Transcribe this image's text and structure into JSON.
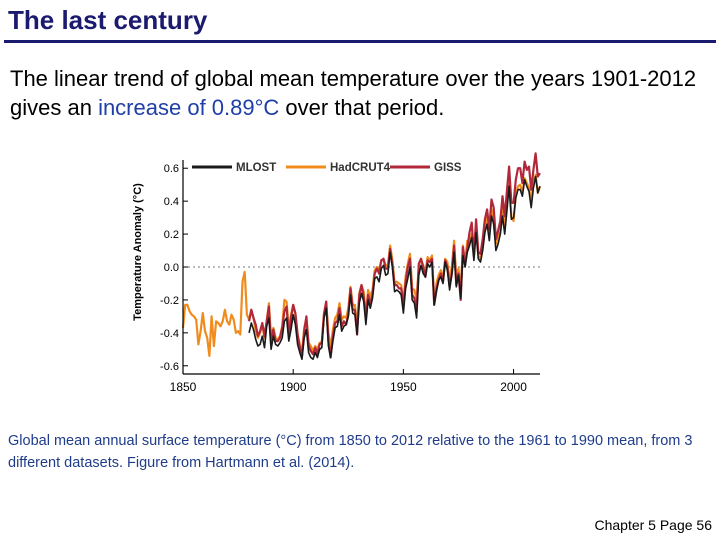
{
  "slide": {
    "title": "The last century",
    "text_before": "The linear trend of  global mean temperature over the years 1901-2012 gives an ",
    "text_highlight": "increase of 0.89°C",
    "text_after": " over that period.",
    "caption": "Global mean annual surface temperature (°C) from 1850 to 2012 relative to the 1961 to 1990 mean, from 3 different datasets. Figure from Hartmann et al. (2014).",
    "footer": "Chapter 5 Page 56"
  },
  "colors": {
    "title": "#1a1a6e",
    "highlight": "#1f3fa8",
    "caption": "#1f3c8a",
    "mlost": "#1a1a1a",
    "hadcrut4": "#f08c1e",
    "giss": "#b0283a"
  },
  "chart_data": {
    "type": "line",
    "title": "",
    "xlabel": "",
    "ylabel": "Temperature Anomaly (°C)",
    "xlim": [
      1850,
      2012
    ],
    "ylim": [
      -0.65,
      0.65
    ],
    "x_ticks": [
      "1850",
      "1900",
      "1950",
      "2000"
    ],
    "y_ticks": [
      "-0.6",
      "-0.4",
      "-0.2",
      "0.0",
      "0.2",
      "0.4",
      "0.6"
    ],
    "zero_line": "dashed",
    "legend_position": "top",
    "series": [
      {
        "name": "MLOST",
        "color": "#1a1a1a",
        "x": [
          1880,
          1881,
          1882,
          1883,
          1884,
          1885,
          1886,
          1887,
          1888,
          1889,
          1890,
          1891,
          1892,
          1893,
          1894,
          1895,
          1896,
          1897,
          1898,
          1899,
          1900,
          1901,
          1902,
          1903,
          1904,
          1905,
          1906,
          1907,
          1908,
          1909,
          1910,
          1911,
          1912,
          1913,
          1914,
          1915,
          1916,
          1917,
          1918,
          1919,
          1920,
          1921,
          1922,
          1923,
          1924,
          1925,
          1926,
          1927,
          1928,
          1929,
          1930,
          1931,
          1932,
          1933,
          1934,
          1935,
          1936,
          1937,
          1938,
          1939,
          1940,
          1941,
          1942,
          1943,
          1944,
          1945,
          1946,
          1947,
          1948,
          1949,
          1950,
          1951,
          1952,
          1953,
          1954,
          1955,
          1956,
          1957,
          1958,
          1959,
          1960,
          1961,
          1962,
          1963,
          1964,
          1965,
          1966,
          1967,
          1968,
          1969,
          1970,
          1971,
          1972,
          1973,
          1974,
          1975,
          1976,
          1977,
          1978,
          1979,
          1980,
          1981,
          1982,
          1983,
          1984,
          1985,
          1986,
          1987,
          1988,
          1989,
          1990,
          1991,
          1992,
          1993,
          1994,
          1995,
          1996,
          1997,
          1998,
          1999,
          2000,
          2001,
          2002,
          2003,
          2004,
          2005,
          2006,
          2007,
          2008,
          2009,
          2010,
          2011,
          2012
        ],
        "values": [
          -0.4,
          -0.34,
          -0.38,
          -0.44,
          -0.48,
          -0.47,
          -0.42,
          -0.49,
          -0.36,
          -0.31,
          -0.5,
          -0.42,
          -0.47,
          -0.48,
          -0.46,
          -0.43,
          -0.33,
          -0.31,
          -0.45,
          -0.38,
          -0.29,
          -0.35,
          -0.47,
          -0.52,
          -0.56,
          -0.43,
          -0.38,
          -0.52,
          -0.55,
          -0.56,
          -0.52,
          -0.55,
          -0.5,
          -0.49,
          -0.31,
          -0.25,
          -0.48,
          -0.55,
          -0.45,
          -0.37,
          -0.36,
          -0.29,
          -0.39,
          -0.36,
          -0.35,
          -0.3,
          -0.17,
          -0.28,
          -0.29,
          -0.41,
          -0.22,
          -0.16,
          -0.21,
          -0.35,
          -0.2,
          -0.25,
          -0.19,
          -0.07,
          -0.06,
          -0.09,
          -0.01,
          0.01,
          -0.05,
          -0.04,
          0.09,
          0.0,
          -0.15,
          -0.14,
          -0.15,
          -0.17,
          -0.28,
          -0.13,
          -0.07,
          0.0,
          -0.2,
          -0.22,
          -0.31,
          -0.05,
          0.01,
          -0.04,
          -0.06,
          0.02,
          0.0,
          0.03,
          -0.23,
          -0.15,
          -0.08,
          -0.06,
          -0.1,
          0.03,
          -0.02,
          -0.14,
          -0.04,
          0.09,
          -0.12,
          -0.05,
          -0.19,
          0.07,
          0.0,
          0.09,
          0.13,
          0.18,
          0.04,
          0.21,
          0.05,
          0.03,
          0.1,
          0.21,
          0.26,
          0.16,
          0.31,
          0.26,
          0.1,
          0.14,
          0.2,
          0.31,
          0.2,
          0.34,
          0.49,
          0.29,
          0.3,
          0.42,
          0.47,
          0.47,
          0.43,
          0.53,
          0.49,
          0.46,
          0.36,
          0.48,
          0.55,
          0.45,
          0.49
        ]
      },
      {
        "name": "HadCRUT4",
        "color": "#f08c1e",
        "x": [
          1850,
          1851,
          1852,
          1853,
          1854,
          1855,
          1856,
          1857,
          1858,
          1859,
          1860,
          1861,
          1862,
          1863,
          1864,
          1865,
          1866,
          1867,
          1868,
          1869,
          1870,
          1871,
          1872,
          1873,
          1874,
          1875,
          1876,
          1877,
          1878,
          1879,
          1880,
          1881,
          1882,
          1883,
          1884,
          1885,
          1886,
          1887,
          1888,
          1889,
          1890,
          1891,
          1892,
          1893,
          1894,
          1895,
          1896,
          1897,
          1898,
          1899,
          1900,
          1901,
          1902,
          1903,
          1904,
          1905,
          1906,
          1907,
          1908,
          1909,
          1910,
          1911,
          1912,
          1913,
          1914,
          1915,
          1916,
          1917,
          1918,
          1919,
          1920,
          1921,
          1922,
          1923,
          1924,
          1925,
          1926,
          1927,
          1928,
          1929,
          1930,
          1931,
          1932,
          1933,
          1934,
          1935,
          1936,
          1937,
          1938,
          1939,
          1940,
          1941,
          1942,
          1943,
          1944,
          1945,
          1946,
          1947,
          1948,
          1949,
          1950,
          1951,
          1952,
          1953,
          1954,
          1955,
          1956,
          1957,
          1958,
          1959,
          1960,
          1961,
          1962,
          1963,
          1964,
          1965,
          1966,
          1967,
          1968,
          1969,
          1970,
          1971,
          1972,
          1973,
          1974,
          1975,
          1976,
          1977,
          1978,
          1979,
          1980,
          1981,
          1982,
          1983,
          1984,
          1985,
          1986,
          1987,
          1988,
          1989,
          1990,
          1991,
          1992,
          1993,
          1994,
          1995,
          1996,
          1997,
          1998,
          1999,
          2000,
          2001,
          2002,
          2003,
          2004,
          2005,
          2006,
          2007,
          2008,
          2009,
          2010,
          2011,
          2012
        ],
        "values": [
          -0.37,
          -0.23,
          -0.23,
          -0.27,
          -0.29,
          -0.3,
          -0.32,
          -0.47,
          -0.39,
          -0.28,
          -0.39,
          -0.43,
          -0.54,
          -0.3,
          -0.48,
          -0.33,
          -0.34,
          -0.36,
          -0.33,
          -0.26,
          -0.33,
          -0.35,
          -0.29,
          -0.32,
          -0.4,
          -0.39,
          -0.41,
          -0.09,
          -0.03,
          -0.29,
          -0.32,
          -0.26,
          -0.31,
          -0.39,
          -0.43,
          -0.4,
          -0.35,
          -0.43,
          -0.33,
          -0.22,
          -0.43,
          -0.37,
          -0.43,
          -0.44,
          -0.42,
          -0.36,
          -0.2,
          -0.21,
          -0.38,
          -0.29,
          -0.23,
          -0.29,
          -0.41,
          -0.47,
          -0.52,
          -0.37,
          -0.31,
          -0.46,
          -0.48,
          -0.51,
          -0.48,
          -0.5,
          -0.46,
          -0.46,
          -0.28,
          -0.21,
          -0.4,
          -0.49,
          -0.38,
          -0.31,
          -0.29,
          -0.22,
          -0.32,
          -0.3,
          -0.31,
          -0.25,
          -0.12,
          -0.23,
          -0.23,
          -0.36,
          -0.16,
          -0.11,
          -0.15,
          -0.29,
          -0.14,
          -0.18,
          -0.14,
          -0.02,
          -0.0,
          -0.02,
          0.04,
          0.05,
          0.01,
          0.01,
          0.13,
          0.04,
          -0.1,
          -0.09,
          -0.1,
          -0.11,
          -0.22,
          -0.06,
          0.02,
          0.08,
          -0.13,
          -0.14,
          -0.2,
          0.01,
          0.05,
          0.01,
          -0.03,
          0.06,
          0.04,
          0.07,
          -0.2,
          -0.1,
          -0.05,
          -0.02,
          -0.07,
          0.05,
          0.03,
          -0.09,
          0.01,
          0.16,
          -0.07,
          -0.01,
          -0.15,
          0.13,
          0.03,
          0.16,
          0.14,
          0.2,
          0.07,
          0.25,
          0.07,
          0.05,
          0.12,
          0.24,
          0.3,
          0.2,
          0.35,
          0.27,
          0.14,
          0.19,
          0.21,
          0.36,
          0.23,
          0.4,
          0.53,
          0.3,
          0.28,
          0.44,
          0.49,
          0.5,
          0.45,
          0.54,
          0.51,
          0.48,
          0.4,
          0.51,
          0.56,
          0.45,
          0.49
        ]
      },
      {
        "name": "GISS",
        "color": "#b0283a",
        "x": [
          1880,
          1881,
          1882,
          1883,
          1884,
          1885,
          1886,
          1887,
          1888,
          1889,
          1890,
          1891,
          1892,
          1893,
          1894,
          1895,
          1896,
          1897,
          1898,
          1899,
          1900,
          1901,
          1902,
          1903,
          1904,
          1905,
          1906,
          1907,
          1908,
          1909,
          1910,
          1911,
          1912,
          1913,
          1914,
          1915,
          1916,
          1917,
          1918,
          1919,
          1920,
          1921,
          1922,
          1923,
          1924,
          1925,
          1926,
          1927,
          1928,
          1929,
          1930,
          1931,
          1932,
          1933,
          1934,
          1935,
          1936,
          1937,
          1938,
          1939,
          1940,
          1941,
          1942,
          1943,
          1944,
          1945,
          1946,
          1947,
          1948,
          1949,
          1950,
          1951,
          1952,
          1953,
          1954,
          1955,
          1956,
          1957,
          1958,
          1959,
          1960,
          1961,
          1962,
          1963,
          1964,
          1965,
          1966,
          1967,
          1968,
          1969,
          1970,
          1971,
          1972,
          1973,
          1974,
          1975,
          1976,
          1977,
          1978,
          1979,
          1980,
          1981,
          1982,
          1983,
          1984,
          1985,
          1986,
          1987,
          1988,
          1989,
          1990,
          1991,
          1992,
          1993,
          1994,
          1995,
          1996,
          1997,
          1998,
          1999,
          2000,
          2001,
          2002,
          2003,
          2004,
          2005,
          2006,
          2007,
          2008,
          2009,
          2010,
          2011,
          2012
        ],
        "values": [
          -0.33,
          -0.26,
          -0.31,
          -0.35,
          -0.42,
          -0.39,
          -0.34,
          -0.42,
          -0.33,
          -0.24,
          -0.47,
          -0.38,
          -0.45,
          -0.45,
          -0.43,
          -0.37,
          -0.27,
          -0.24,
          -0.42,
          -0.31,
          -0.23,
          -0.28,
          -0.41,
          -0.49,
          -0.54,
          -0.39,
          -0.3,
          -0.48,
          -0.51,
          -0.53,
          -0.49,
          -0.53,
          -0.47,
          -0.46,
          -0.29,
          -0.21,
          -0.45,
          -0.55,
          -0.42,
          -0.34,
          -0.33,
          -0.25,
          -0.36,
          -0.33,
          -0.35,
          -0.29,
          -0.13,
          -0.26,
          -0.26,
          -0.41,
          -0.17,
          -0.11,
          -0.18,
          -0.31,
          -0.17,
          -0.22,
          -0.17,
          -0.04,
          -0.01,
          -0.04,
          0.04,
          0.05,
          -0.01,
          -0.01,
          0.11,
          0.01,
          -0.11,
          -0.11,
          -0.13,
          -0.13,
          -0.24,
          -0.09,
          0.0,
          0.05,
          -0.17,
          -0.19,
          -0.27,
          0.02,
          0.05,
          0.0,
          -0.06,
          0.04,
          0.03,
          0.05,
          -0.23,
          -0.14,
          -0.08,
          -0.04,
          -0.09,
          0.04,
          0.0,
          -0.12,
          -0.04,
          0.13,
          -0.11,
          -0.04,
          -0.2,
          0.12,
          0.01,
          0.11,
          0.21,
          0.27,
          0.07,
          0.29,
          0.09,
          0.08,
          0.17,
          0.29,
          0.35,
          0.23,
          0.41,
          0.36,
          0.17,
          0.22,
          0.28,
          0.43,
          0.31,
          0.46,
          0.61,
          0.39,
          0.39,
          0.53,
          0.6,
          0.6,
          0.51,
          0.64,
          0.59,
          0.61,
          0.47,
          0.59,
          0.69,
          0.55,
          0.57
        ]
      }
    ]
  }
}
